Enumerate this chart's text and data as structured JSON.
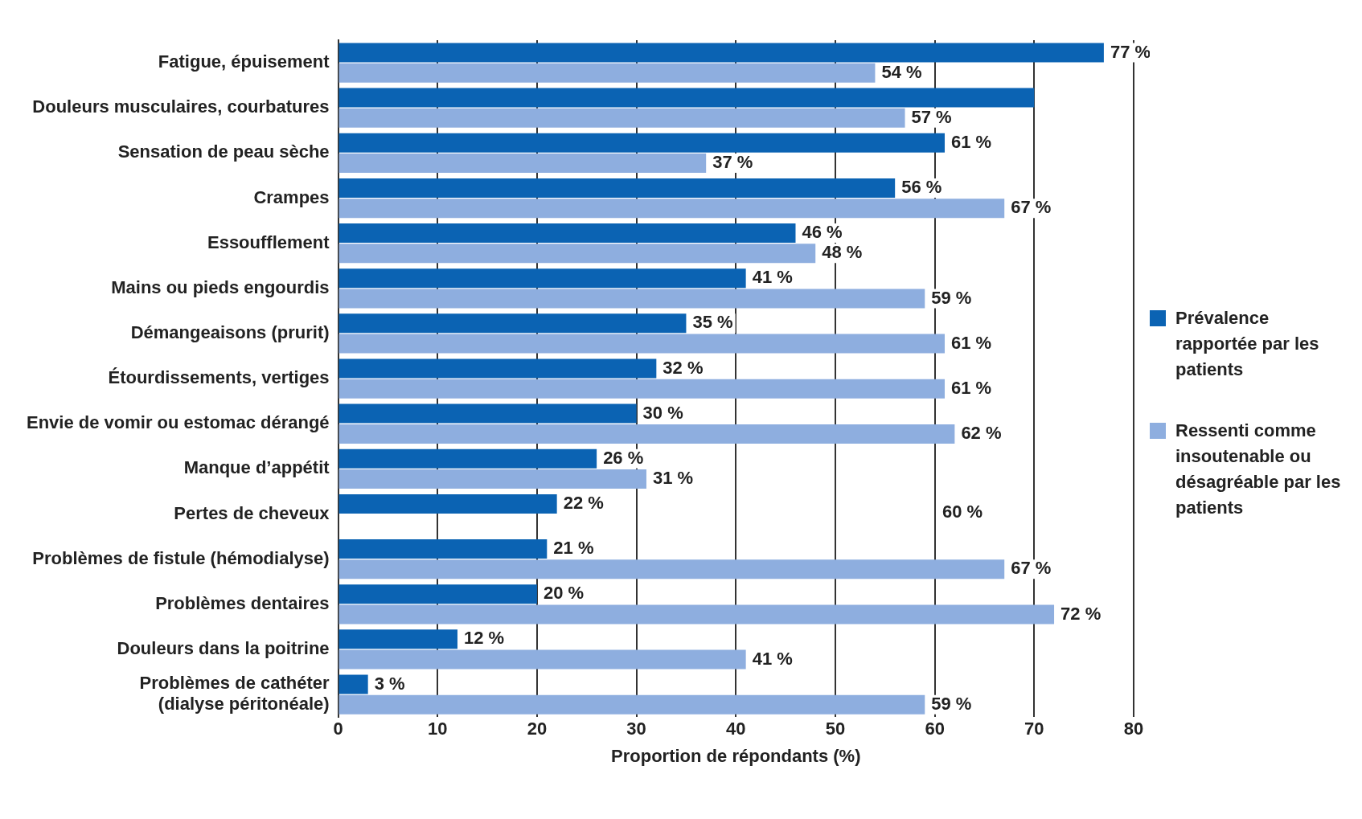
{
  "chart_data": {
    "type": "bar",
    "orientation": "horizontal",
    "xlabel": "Proportion de répondants (%)",
    "categories": [
      "Fatigue, épuisement",
      "Douleurs musculaires, courbatures",
      "Sensation de peau sèche",
      "Crampes",
      "Essoufflement",
      "Mains ou pieds engourdis",
      "Démangeaisons (prurit)",
      "Étourdissements, vertiges",
      "Envie de vomir ou estomac dérangé",
      "Manque d’appétit",
      "Pertes de cheveux",
      "Problèmes de fistule (hémodialyse)",
      "Problèmes dentaires",
      "Douleurs dans la poitrine",
      "Problèmes de cathéter\n(dialyse péritonéale)"
    ],
    "series": [
      {
        "name": "Prévalence rapportée par les patients",
        "color": "#0b63b3",
        "values": [
          77,
          70,
          61,
          56,
          46,
          41,
          35,
          32,
          30,
          26,
          22,
          21,
          20,
          12,
          3
        ],
        "value_labels": [
          "77 %",
          null,
          "61 %",
          "56 %",
          "46 %",
          "41 %",
          "35 %",
          "32 %",
          "30 %",
          "26 %",
          "22 %",
          "21 %",
          "20 %",
          "12 %",
          "3 %"
        ]
      },
      {
        "name": "Ressenti comme insoutenable ou désagréable par les patients",
        "color": "#8eaedf",
        "values": [
          54,
          57,
          37,
          67,
          48,
          59,
          61,
          61,
          62,
          31,
          null,
          67,
          72,
          41,
          59
        ],
        "value_labels": [
          "54 %",
          "57 %",
          "37 %",
          "67 %",
          "48 %",
          "59 %",
          "61 %",
          "61 %",
          "62 %",
          "31 %",
          null,
          "67 %",
          "72 %",
          "41 %",
          "59 %"
        ]
      }
    ],
    "annotations": [
      "60 %"
    ],
    "xlim": [
      0,
      80
    ],
    "xticks": [
      0,
      10,
      20,
      30,
      40,
      50,
      60,
      70,
      80
    ],
    "grid": "x",
    "legend": "right"
  }
}
